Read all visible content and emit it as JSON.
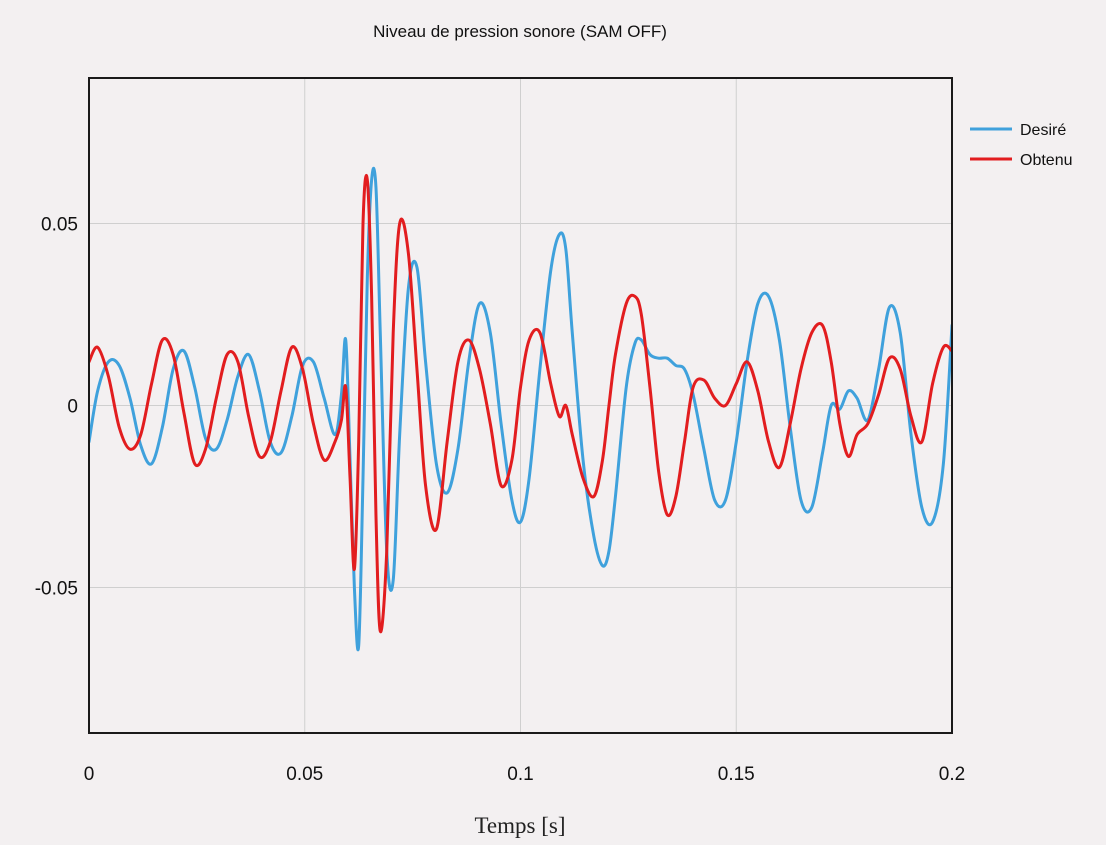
{
  "chart_data": {
    "type": "line",
    "title": "Niveau de pression sonore (SAM OFF)",
    "xlabel": "Temps [s]",
    "ylabel": "",
    "xlim": [
      0,
      0.2
    ],
    "ylim": [
      -0.09,
      0.09
    ],
    "xticks": [
      0,
      0.05,
      0.1,
      0.15,
      0.2
    ],
    "xtick_labels": [
      "0",
      "0.05",
      "0.1",
      "0.15",
      "0.2"
    ],
    "yticks": [
      -0.05,
      0,
      0.05
    ],
    "ytick_labels": [
      "-0.05",
      "0",
      "0.05"
    ],
    "grid": true,
    "legend_position": "right-top, outside",
    "series": [
      {
        "name": "Desiré",
        "color": "#3fa1dc",
        "x": [
          0,
          0.002,
          0.0045,
          0.007,
          0.0095,
          0.012,
          0.0145,
          0.017,
          0.0195,
          0.022,
          0.0245,
          0.027,
          0.0295,
          0.032,
          0.0345,
          0.037,
          0.0395,
          0.042,
          0.0445,
          0.047,
          0.0495,
          0.052,
          0.0545,
          0.057,
          0.0585,
          0.0595,
          0.0605,
          0.0615,
          0.0625,
          0.0635,
          0.0645,
          0.0655,
          0.0665,
          0.0675,
          0.069,
          0.0705,
          0.072,
          0.074,
          0.076,
          0.078,
          0.0805,
          0.083,
          0.0855,
          0.088,
          0.0905,
          0.093,
          0.0955,
          0.098,
          0.1,
          0.102,
          0.1045,
          0.107,
          0.109,
          0.1105,
          0.112,
          0.1145,
          0.117,
          0.119,
          0.1205,
          0.122,
          0.1245,
          0.1265,
          0.128,
          0.13,
          0.132,
          0.134,
          0.136,
          0.138,
          0.14,
          0.1425,
          0.145,
          0.1475,
          0.15,
          0.1525,
          0.155,
          0.1575,
          0.16,
          0.1625,
          0.165,
          0.1675,
          0.17,
          0.172,
          0.174,
          0.176,
          0.178,
          0.1805,
          0.183,
          0.1855,
          0.188,
          0.1905,
          0.193,
          0.1955,
          0.198,
          0.2
        ],
        "values": [
          -0.01,
          0.004,
          0.012,
          0.011,
          0.002,
          -0.011,
          -0.016,
          -0.006,
          0.01,
          0.015,
          0.005,
          -0.009,
          -0.012,
          -0.004,
          0.008,
          0.014,
          0.004,
          -0.01,
          -0.013,
          -0.003,
          0.011,
          0.012,
          0.002,
          -0.008,
          0.003,
          0.018,
          -0.015,
          -0.05,
          -0.066,
          -0.02,
          0.035,
          0.062,
          0.06,
          0.02,
          -0.04,
          -0.048,
          -0.008,
          0.032,
          0.038,
          0.012,
          -0.016,
          -0.024,
          -0.012,
          0.012,
          0.028,
          0.02,
          -0.005,
          -0.026,
          -0.032,
          -0.02,
          0.01,
          0.037,
          0.047,
          0.043,
          0.02,
          -0.015,
          -0.036,
          -0.044,
          -0.04,
          -0.025,
          0.005,
          0.017,
          0.018,
          0.014,
          0.013,
          0.013,
          0.011,
          0.01,
          0.003,
          -0.012,
          -0.026,
          -0.026,
          -0.01,
          0.012,
          0.028,
          0.03,
          0.018,
          -0.006,
          -0.026,
          -0.028,
          -0.013,
          0,
          -0.001,
          0.004,
          0.002,
          -0.004,
          0.01,
          0.027,
          0.02,
          -0.008,
          -0.028,
          -0.032,
          -0.016,
          0.022
        ]
      },
      {
        "name": "Obtenu",
        "color": "#e21d1f",
        "x": [
          0,
          0.002,
          0.0045,
          0.007,
          0.0095,
          0.012,
          0.0145,
          0.017,
          0.0195,
          0.022,
          0.0245,
          0.027,
          0.0295,
          0.032,
          0.0345,
          0.037,
          0.0395,
          0.042,
          0.0445,
          0.047,
          0.0495,
          0.052,
          0.0545,
          0.057,
          0.0585,
          0.0595,
          0.0605,
          0.0615,
          0.0625,
          0.0635,
          0.0645,
          0.0655,
          0.0665,
          0.0675,
          0.069,
          0.0705,
          0.072,
          0.074,
          0.076,
          0.078,
          0.0805,
          0.083,
          0.0855,
          0.088,
          0.0905,
          0.093,
          0.0955,
          0.098,
          0.1,
          0.102,
          0.1045,
          0.107,
          0.109,
          0.1105,
          0.112,
          0.1145,
          0.117,
          0.119,
          0.1205,
          0.122,
          0.1245,
          0.1265,
          0.128,
          0.13,
          0.132,
          0.134,
          0.136,
          0.138,
          0.14,
          0.1425,
          0.145,
          0.1475,
          0.15,
          0.1525,
          0.155,
          0.1575,
          0.16,
          0.1625,
          0.165,
          0.1675,
          0.17,
          0.172,
          0.174,
          0.176,
          0.178,
          0.1805,
          0.183,
          0.1855,
          0.188,
          0.1905,
          0.193,
          0.1955,
          0.198,
          0.2
        ],
        "values": [
          0.012,
          0.016,
          0.008,
          -0.006,
          -0.012,
          -0.008,
          0.006,
          0.018,
          0.014,
          -0.002,
          -0.016,
          -0.012,
          0.002,
          0.014,
          0.012,
          -0.003,
          -0.014,
          -0.01,
          0.004,
          0.016,
          0.01,
          -0.005,
          -0.015,
          -0.01,
          -0.004,
          0.005,
          -0.02,
          -0.045,
          -0.01,
          0.05,
          0.062,
          0.03,
          -0.03,
          -0.062,
          -0.04,
          0.02,
          0.05,
          0.042,
          0.01,
          -0.022,
          -0.034,
          -0.01,
          0.012,
          0.018,
          0.01,
          -0.005,
          -0.022,
          -0.015,
          0.005,
          0.018,
          0.02,
          0.006,
          -0.003,
          0,
          -0.008,
          -0.02,
          -0.025,
          -0.015,
          0,
          0.014,
          0.028,
          0.03,
          0.025,
          0.005,
          -0.018,
          -0.03,
          -0.025,
          -0.01,
          0.005,
          0.007,
          0.002,
          0,
          0.006,
          0.012,
          0.004,
          -0.01,
          -0.017,
          -0.005,
          0.01,
          0.02,
          0.022,
          0.012,
          -0.005,
          -0.014,
          -0.008,
          -0.005,
          0.003,
          0.013,
          0.01,
          -0.003,
          -0.01,
          0.006,
          0.016,
          0.015
        ]
      }
    ]
  }
}
